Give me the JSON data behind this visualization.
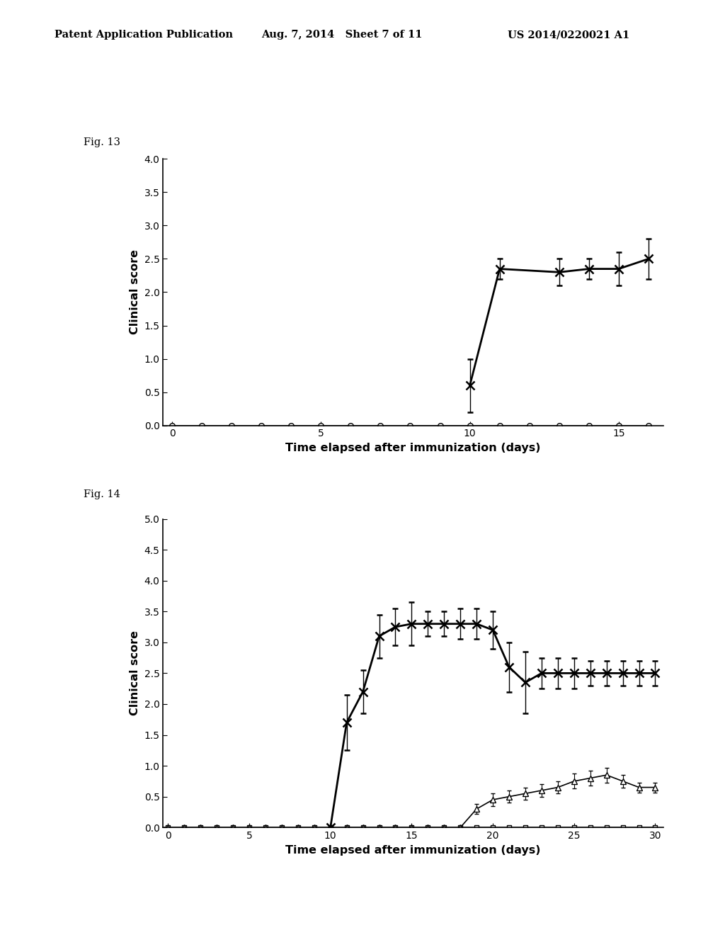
{
  "header_left": "Patent Application Publication",
  "header_mid": "Aug. 7, 2014   Sheet 7 of 11",
  "header_right": "US 2014/0220021 A1",
  "fig13_label": "Fig. 13",
  "fig14_label": "Fig. 14",
  "xlabel": "Time elapsed after immunization (days)",
  "ylabel": "Clinical score",
  "fig13": {
    "xlim": [
      -0.3,
      16.5
    ],
    "ylim": [
      0,
      4
    ],
    "yticks": [
      0,
      0.5,
      1,
      1.5,
      2,
      2.5,
      3,
      3.5,
      4
    ],
    "xticks": [
      0,
      5,
      10,
      15
    ],
    "series_circle": {
      "x": [
        0,
        1,
        2,
        3,
        4,
        5,
        6,
        7,
        8,
        9,
        10,
        11,
        12,
        13,
        14,
        15,
        16
      ],
      "y": [
        0,
        0,
        0,
        0,
        0,
        0,
        0,
        0,
        0,
        0,
        0,
        0,
        0,
        0,
        0,
        0,
        0
      ],
      "yerr": [
        0,
        0,
        0,
        0,
        0,
        0,
        0,
        0,
        0,
        0,
        0,
        0,
        0,
        0,
        0,
        0,
        0
      ]
    },
    "series_cross": {
      "x": [
        10,
        11,
        13,
        14,
        15,
        16
      ],
      "y": [
        0.6,
        2.35,
        2.3,
        2.35,
        2.35,
        2.5
      ],
      "yerr": [
        0.4,
        0.15,
        0.2,
        0.15,
        0.25,
        0.3
      ]
    }
  },
  "fig14": {
    "xlim": [
      -0.3,
      30.5
    ],
    "ylim": [
      0,
      5
    ],
    "yticks": [
      0,
      0.5,
      1,
      1.5,
      2,
      2.5,
      3,
      3.5,
      4,
      4.5,
      5
    ],
    "xticks": [
      0,
      5,
      10,
      15,
      20,
      25,
      30
    ],
    "series_square": {
      "x": [
        0,
        1,
        2,
        3,
        4,
        5,
        6,
        7,
        8,
        9,
        10,
        11,
        12,
        13,
        14,
        15,
        16,
        17,
        18,
        19,
        20,
        21,
        22,
        23,
        24,
        25,
        26,
        27,
        28,
        29,
        30
      ],
      "y": [
        0,
        0,
        0,
        0,
        0,
        0,
        0,
        0,
        0,
        0,
        0,
        0,
        0,
        0,
        0,
        0,
        0,
        0,
        0,
        0,
        0,
        0,
        0,
        0,
        0,
        0,
        0,
        0,
        0,
        0,
        0
      ],
      "yerr": [
        0,
        0,
        0,
        0,
        0,
        0,
        0,
        0,
        0,
        0,
        0,
        0,
        0,
        0,
        0,
        0,
        0,
        0,
        0,
        0,
        0,
        0,
        0,
        0,
        0,
        0,
        0,
        0,
        0,
        0,
        0
      ]
    },
    "series_triangle": {
      "x": [
        0,
        1,
        2,
        3,
        4,
        5,
        6,
        7,
        8,
        9,
        10,
        11,
        12,
        13,
        14,
        15,
        16,
        17,
        18,
        19,
        20,
        21,
        22,
        23,
        24,
        25,
        26,
        27,
        28,
        29,
        30
      ],
      "y": [
        0,
        0,
        0,
        0,
        0,
        0,
        0,
        0,
        0,
        0,
        0,
        0,
        0,
        0,
        0,
        0,
        0,
        0,
        0,
        0.3,
        0.45,
        0.5,
        0.55,
        0.6,
        0.65,
        0.75,
        0.8,
        0.85,
        0.75,
        0.65,
        0.65
      ],
      "yerr": [
        0,
        0,
        0,
        0,
        0,
        0,
        0,
        0,
        0,
        0,
        0,
        0,
        0,
        0,
        0,
        0,
        0,
        0,
        0,
        0.08,
        0.1,
        0.1,
        0.1,
        0.1,
        0.1,
        0.12,
        0.12,
        0.12,
        0.1,
        0.08,
        0.08
      ]
    },
    "series_cross": {
      "x": [
        10,
        11,
        12,
        13,
        14,
        15,
        16,
        17,
        18,
        19,
        20,
        21,
        22,
        23,
        24,
        25,
        26,
        27,
        28,
        29,
        30
      ],
      "y": [
        0,
        1.7,
        2.2,
        3.1,
        3.25,
        3.3,
        3.3,
        3.3,
        3.3,
        3.3,
        3.2,
        2.6,
        2.35,
        2.5,
        2.5,
        2.5,
        2.5,
        2.5,
        2.5,
        2.5,
        2.5
      ],
      "yerr": [
        0,
        0.45,
        0.35,
        0.35,
        0.3,
        0.35,
        0.2,
        0.2,
        0.25,
        0.25,
        0.3,
        0.4,
        0.5,
        0.25,
        0.25,
        0.25,
        0.2,
        0.2,
        0.2,
        0.2,
        0.2
      ]
    }
  },
  "background_color": "#ffffff",
  "line_color": "#000000"
}
